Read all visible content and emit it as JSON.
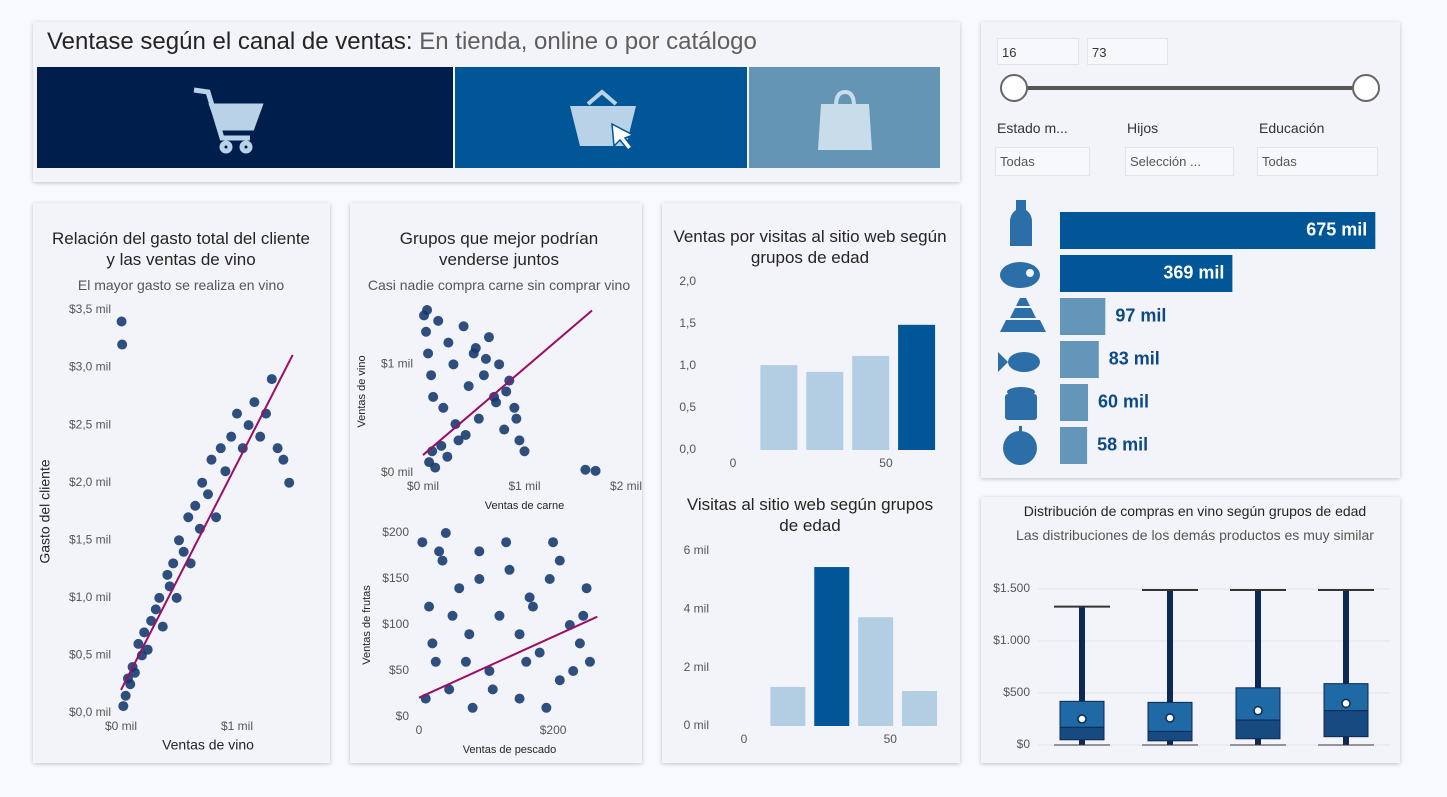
{
  "header": {
    "title": "Ventase según el canal de ventas:",
    "subtitle": "En tienda, online o por catálogo"
  },
  "slicer": {
    "from": 16,
    "to": 73
  },
  "filters": [
    {
      "label": "Estado m...",
      "value": "Todas"
    },
    {
      "label": "Hijos",
      "value": "Selección ..."
    },
    {
      "label": "Educación",
      "value": "Todas"
    }
  ],
  "chart_data": [
    {
      "type": "hbar",
      "categories": [
        null,
        null,
        null,
        null,
        null,
        null
      ],
      "values": [
        675,
        369,
        97,
        83,
        60,
        58
      ],
      "value_labels": [
        "675 mil",
        "369 mil",
        "97 mil",
        "83 mil",
        "60 mil",
        "58 mil"
      ],
      "colors": [
        "#005696",
        "#005696",
        "#6496b9",
        "#6496b9",
        "#6496b9",
        "#6496b9"
      ],
      "xlim": [
        0,
        700
      ]
    },
    {
      "type": "scatter",
      "title": "Relación del gasto total del cliente y las ventas de vino",
      "subtitle": "El mayor gasto se realiza en vino",
      "xlabel": "Ventas de vino",
      "ylabel": "Gasto del cliente",
      "x": [
        20,
        40,
        60,
        80,
        100,
        120,
        150,
        180,
        200,
        230,
        260,
        300,
        330,
        360,
        400,
        420,
        450,
        480,
        500,
        540,
        580,
        600,
        640,
        680,
        700,
        750,
        780,
        820,
        860,
        900,
        950,
        1000,
        1050,
        1100,
        1150,
        1200,
        1250,
        1300,
        1350,
        1400,
        1450,
        5,
        10
      ],
      "values": [
        60,
        150,
        300,
        250,
        400,
        350,
        600,
        500,
        700,
        550,
        800,
        900,
        1000,
        750,
        1200,
        1100,
        1300,
        1000,
        1500,
        1400,
        1700,
        1300,
        1800,
        1600,
        2000,
        1900,
        2200,
        1700,
        2300,
        2100,
        2400,
        2600,
        2300,
        2500,
        2700,
        2400,
        2600,
        2900,
        2300,
        2200,
        2000,
        3400,
        3200
      ],
      "color": "#12386b",
      "trend": {
        "x": [
          0,
          1480
        ],
        "values": [
          200,
          3110
        ],
        "color": "#9b0d68"
      },
      "xlim": [
        0,
        1500
      ],
      "ylim": [
        0,
        3500
      ],
      "xticks": [
        {
          "value": 0,
          "label": "$0 mil"
        },
        {
          "value": 1000,
          "label": "$1 mil"
        }
      ],
      "yticks": [
        {
          "value": 0,
          "label": "$0,0 mil"
        },
        {
          "value": 500,
          "label": "$0,5 mil"
        },
        {
          "value": 1000,
          "label": "$1,0 mil"
        },
        {
          "value": 1500,
          "label": "$1,5 mil"
        },
        {
          "value": 2000,
          "label": "$2,0 mil"
        },
        {
          "value": 2500,
          "label": "$2,5 mil"
        },
        {
          "value": 3000,
          "label": "$3,0 mil"
        },
        {
          "value": 3500,
          "label": "$3,5 mil"
        }
      ]
    },
    {
      "type": "scatter",
      "title": "Grupos que mejor podrían venderse juntos",
      "subtitle": "Casi nadie compra carne sin comprar vino",
      "xlabel": "Ventas de carne",
      "ylabel": "Ventas de vino",
      "x": [
        10,
        30,
        50,
        80,
        100,
        150,
        200,
        250,
        300,
        350,
        400,
        450,
        500,
        550,
        600,
        650,
        700,
        750,
        800,
        850,
        900,
        950,
        1000,
        60,
        120,
        180,
        240,
        320,
        420,
        520,
        620,
        720,
        820,
        920,
        1600,
        1700,
        40,
        90
      ],
      "values": [
        1450,
        1300,
        1100,
        900,
        700,
        1400,
        600,
        1200,
        1000,
        300,
        1350,
        800,
        1100,
        500,
        900,
        1250,
        700,
        1000,
        400,
        850,
        600,
        300,
        200,
        100,
        50,
        250,
        150,
        450,
        350,
        1150,
        1050,
        650,
        750,
        500,
        30,
        20,
        1500,
        200
      ],
      "color": "#12386b",
      "trend": {
        "x": [
          0,
          1665
        ],
        "values": [
          165,
          1495
        ],
        "color": "#9b0d68"
      },
      "xlim": [
        0,
        2000
      ],
      "ylim": [
        0,
        1500
      ],
      "xticks": [
        {
          "value": 0,
          "label": "$0 mil"
        },
        {
          "value": 1000,
          "label": "$1 mil"
        },
        {
          "value": 2000,
          "label": "$2 mil"
        }
      ],
      "yticks": [
        {
          "value": 0,
          "label": "$0 mil"
        },
        {
          "value": 1000,
          "label": "$1 mil"
        }
      ]
    },
    {
      "type": "scatter",
      "xlabel": "Ventas de pescado",
      "ylabel": "Ventas de frutas",
      "x": [
        5,
        15,
        25,
        35,
        45,
        60,
        75,
        90,
        105,
        120,
        135,
        150,
        165,
        180,
        195,
        210,
        225,
        240,
        255,
        10,
        30,
        50,
        70,
        90,
        110,
        130,
        150,
        170,
        190,
        210,
        230,
        250,
        20,
        40,
        80,
        160,
        200,
        245
      ],
      "values": [
        190,
        120,
        60,
        170,
        30,
        140,
        90,
        180,
        50,
        110,
        160,
        20,
        130,
        70,
        150,
        40,
        100,
        80,
        60,
        20,
        180,
        110,
        60,
        150,
        30,
        190,
        90,
        120,
        10,
        170,
        50,
        140,
        80,
        200,
        10,
        60,
        190,
        110
      ],
      "color": "#12386b",
      "trend": {
        "x": [
          0,
          266
        ],
        "values": [
          21,
          109
        ],
        "color": "#9b0d68"
      },
      "xlim": [
        0,
        270
      ],
      "ylim": [
        0,
        200
      ],
      "xticks": [
        0,
        {
          "value": 200,
          "label": "$200"
        }
      ],
      "yticks": [
        {
          "value": 0,
          "label": "$0"
        },
        {
          "value": 50,
          "label": "$50"
        },
        {
          "value": 100,
          "label": "$100"
        },
        {
          "value": 150,
          "label": "$150"
        },
        {
          "value": 200,
          "label": "$200"
        }
      ]
    },
    {
      "type": "bar",
      "title": "Ventas por visitas al sitio web según grupos de edad",
      "x": [
        15,
        30,
        45,
        60
      ],
      "values": [
        1.01,
        0.93,
        1.12,
        1.49
      ],
      "colors": [
        "#b3cde3",
        "#b3cde3",
        "#b3cde3",
        "#005696"
      ],
      "xlim": [
        0,
        67
      ],
      "ylim": [
        0,
        2
      ],
      "xticks": [
        0,
        50
      ],
      "yticks": [
        {
          "value": 0,
          "label": "0,0"
        },
        {
          "value": 0.5,
          "label": "0,5"
        },
        {
          "value": 1,
          "label": "1,0"
        },
        {
          "value": 1.5,
          "label": "1,5"
        },
        {
          "value": 2,
          "label": "2,0"
        }
      ]
    },
    {
      "type": "bar",
      "title": "Visitas al sitio web según grupos de edad",
      "x": [
        15,
        30,
        45,
        60
      ],
      "values": [
        1340,
        5450,
        3730,
        1200
      ],
      "colors": [
        "#b3cde3",
        "#005696",
        "#b3cde3",
        "#b3cde3"
      ],
      "xlim": [
        0,
        67
      ],
      "ylim": [
        0,
        6000
      ],
      "xticks": [
        0,
        50
      ],
      "yticks": [
        {
          "value": 0,
          "label": "0 mil"
        },
        {
          "value": 2000,
          "label": "2 mil"
        },
        {
          "value": 4000,
          "label": "4 mil"
        },
        {
          "value": 6000,
          "label": "6 mil"
        }
      ]
    },
    {
      "type": "box",
      "title": "Distribución de compras en vino según grupos de edad",
      "subtitle": "Las distribuciones de los demás productos es muy similar",
      "categories": [
        null,
        null,
        null,
        null
      ],
      "boxes": [
        {
          "min": 0,
          "q1": 50,
          "median": 170,
          "q3": 420,
          "max": 1330,
          "mean": 250
        },
        {
          "min": 0,
          "q1": 40,
          "median": 130,
          "q3": 410,
          "max": 1490,
          "mean": 260
        },
        {
          "min": 0,
          "q1": 60,
          "median": 240,
          "q3": 550,
          "max": 1490,
          "mean": 330
        },
        {
          "min": 0,
          "q1": 80,
          "median": 330,
          "q3": 590,
          "max": 1490,
          "mean": 400
        }
      ],
      "colors": [
        "#1f6aa5",
        "#174a80"
      ],
      "ylim": [
        0,
        1500
      ],
      "grid": true,
      "yticks": [
        {
          "value": 0,
          "label": "$0"
        },
        {
          "value": 500,
          "label": "$500"
        },
        {
          "value": 1000,
          "label": "$1.000"
        },
        {
          "value": 1500,
          "label": "$1.500"
        }
      ]
    }
  ]
}
